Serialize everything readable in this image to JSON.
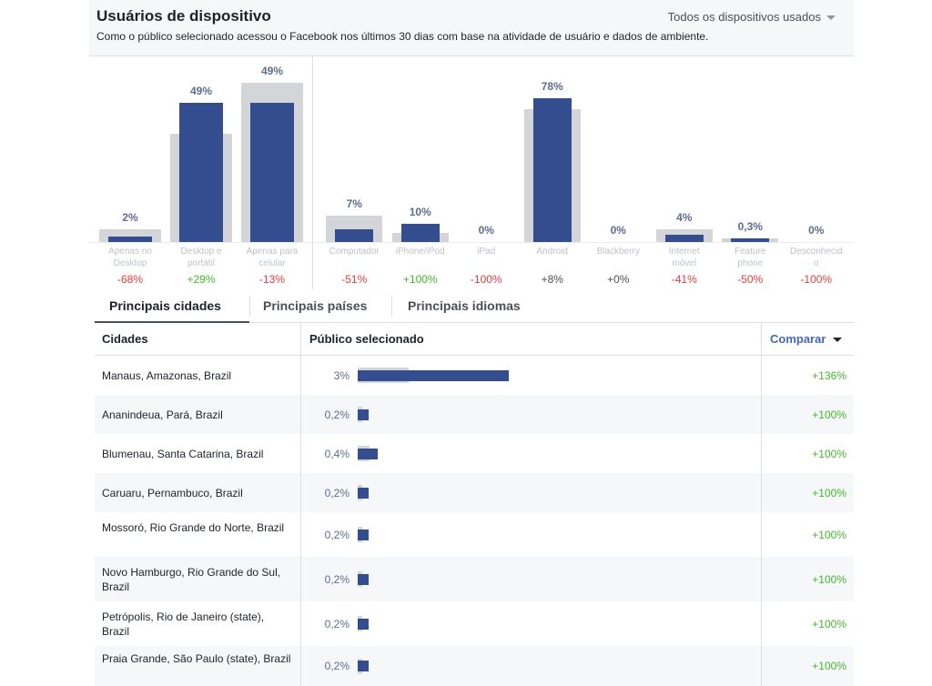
{
  "header": {
    "title": "Usuários de dispositivo",
    "subtitle": "Como o público selecionado acessou o Facebook nos últimos 30 dias com base na atividade de usuário e dados de ambiente.",
    "device_select": "Todos os dispositivos usados"
  },
  "chart_data": [
    {
      "type": "bar",
      "categories": [
        "Apenas no Desktop",
        "Desktop e portátil",
        "Apenas para celular"
      ],
      "series": [
        {
          "values": [
            2,
            49,
            49
          ]
        }
      ],
      "value_labels": [
        "2%",
        "49%",
        "49%"
      ],
      "comparison_labels": [
        "-68%",
        "+29%",
        "-13%"
      ],
      "ylim": [
        0,
        55
      ]
    },
    {
      "type": "bar",
      "categories": [
        "Computador",
        "iPhone/iPod",
        "iPad",
        "Android",
        "Blackberry",
        "Internet móvel",
        "Feature phone",
        "Desconhecido"
      ],
      "series": [
        {
          "values": [
            7,
            10,
            0,
            78,
            0,
            4,
            0.3,
            0
          ]
        }
      ],
      "value_labels": [
        "7%",
        "10%",
        "0%",
        "78%",
        "0%",
        "4%",
        "0,3%",
        "0%"
      ],
      "comparison_labels": [
        "-51%",
        "+100%",
        "-100%",
        "+8%",
        "+0%",
        "-41%",
        "-50%",
        "-100%"
      ],
      "ylim": [
        0,
        85
      ]
    }
  ],
  "bars_left": [
    {
      "label_lines": [
        "Apenas no",
        "Desktop"
      ],
      "pct": "2%",
      "value": 2,
      "bg_value": 4.5,
      "delta": "-68%",
      "delta_type": "neg"
    },
    {
      "label_lines": [
        "Desktop e",
        "portátil"
      ],
      "pct": "49%",
      "value": 49,
      "bg_value": 38,
      "delta": "+29%",
      "delta_type": "pos"
    },
    {
      "label_lines": [
        "Apenas para",
        "celular"
      ],
      "pct": "49%",
      "value": 49,
      "bg_value": 56,
      "delta": "-13%",
      "delta_type": "neg"
    }
  ],
  "bars_right": [
    {
      "label_lines": [
        "Computador"
      ],
      "pct": "7%",
      "value": 7,
      "bg_value": 14.5,
      "delta": "-51%",
      "delta_type": "neg"
    },
    {
      "label_lines": [
        "iPhone/iPod"
      ],
      "pct": "10%",
      "value": 10,
      "bg_value": 5,
      "delta": "+100%",
      "delta_type": "pos"
    },
    {
      "label_lines": [
        "iPad"
      ],
      "pct": "0%",
      "value": 0,
      "bg_value": 0,
      "delta": "-100%",
      "delta_type": "neg"
    },
    {
      "label_lines": [
        "Android"
      ],
      "pct": "78%",
      "value": 78,
      "bg_value": 72,
      "delta": "+8%",
      "delta_type": "neu"
    },
    {
      "label_lines": [
        "Blackberry"
      ],
      "pct": "0%",
      "value": 0,
      "bg_value": 0,
      "delta": "+0%",
      "delta_type": "neu"
    },
    {
      "label_lines": [
        "Internet",
        "móvel"
      ],
      "pct": "4%",
      "value": 4,
      "bg_value": 7,
      "delta": "-41%",
      "delta_type": "neg"
    },
    {
      "label_lines": [
        "Feature",
        "phone"
      ],
      "pct": "0,3%",
      "value": 0.3,
      "bg_value": 0.6,
      "delta": "-50%",
      "delta_type": "neg"
    },
    {
      "label_lines": [
        "Desconhecid",
        "o"
      ],
      "pct": "0%",
      "value": 0,
      "bg_value": 0,
      "delta": "-100%",
      "delta_type": "neg"
    }
  ],
  "tabs": [
    {
      "label": "Principais cidades",
      "active": true
    },
    {
      "label": "Principais países",
      "active": false
    },
    {
      "label": "Principais idiomas",
      "active": false
    }
  ],
  "table": {
    "col_city": "Cidades",
    "col_audience": "Público selecionado",
    "col_compare": "Comparar",
    "rows": [
      {
        "city": "Manaus, Amazonas, Brazil",
        "pct": "3%",
        "value": 3,
        "bg_value": 1.0,
        "delta": "+136%"
      },
      {
        "city": "Ananindeua, Pará, Brazil",
        "pct": "0,2%",
        "value": 0.2,
        "bg_value": 0.05,
        "delta": "+100%"
      },
      {
        "city": "Blumenau, Santa Catarina, Brazil",
        "pct": "0,4%",
        "value": 0.4,
        "bg_value": 0.25,
        "delta": "+100%"
      },
      {
        "city": "Caruaru, Pernambuco, Brazil",
        "pct": "0,2%",
        "value": 0.2,
        "bg_value": 0.05,
        "delta": "+100%"
      },
      {
        "city": "Mossoró, Rio Grande do Norte, Brazil",
        "pct": "0,2%",
        "value": 0.2,
        "bg_value": 0.05,
        "delta": "+100%"
      },
      {
        "city": "Novo Hamburgo, Rio Grande do Sul, Brazil",
        "pct": "0,2%",
        "value": 0.2,
        "bg_value": 0.05,
        "delta": "+100%"
      },
      {
        "city": "Petrópolis, Rio de Janeiro (state), Brazil",
        "pct": "0,2%",
        "value": 0.2,
        "bg_value": 0.05,
        "delta": "+100%"
      },
      {
        "city": "Praia Grande, São Paulo (state), Brazil",
        "pct": "0,2%",
        "value": 0.2,
        "bg_value": 0.05,
        "delta": "+100%"
      }
    ]
  }
}
